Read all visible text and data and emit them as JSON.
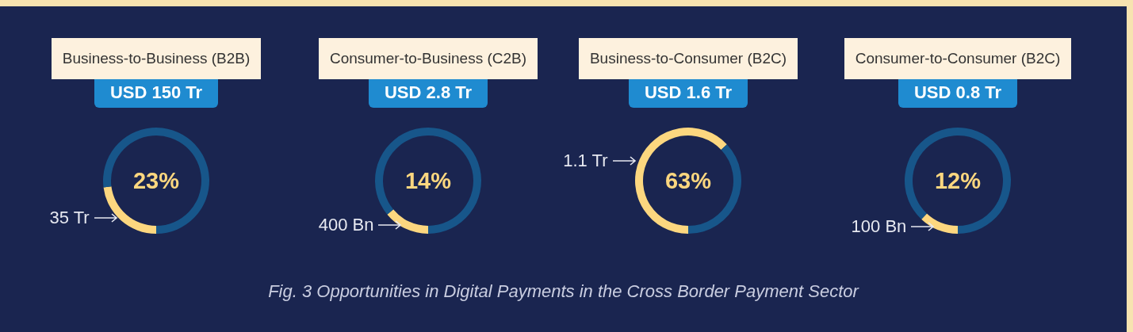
{
  "chart_data": [
    {
      "type": "donut",
      "title": "Business-to-Business (B2B)",
      "subtitle": "USD 150 Tr",
      "categories": [
        null,
        null
      ],
      "values": [
        23,
        77
      ],
      "colors": [
        "#fcd77f",
        "#17568a"
      ],
      "annotations": [
        "23%",
        "35 Tr",
        "Fig. 3 Opportunities in Digital Payments in the Cross Border Payment Sector"
      ]
    },
    {
      "type": "donut",
      "title": "Consumer-to-Business (C2B)",
      "subtitle": "USD 2.8 Tr",
      "categories": [
        null,
        null
      ],
      "values": [
        14,
        86
      ],
      "colors": [
        "#fcd77f",
        "#17568a"
      ],
      "annotations": [
        "14%",
        "400 Bn"
      ]
    },
    {
      "type": "donut",
      "title": "Business-to-Consumer (B2C)",
      "subtitle": "USD 1.6 Tr",
      "categories": [
        null,
        null
      ],
      "values": [
        63,
        37
      ],
      "colors": [
        "#fcd77f",
        "#17568a"
      ],
      "annotations": [
        "63%",
        "1.1 Tr"
      ]
    },
    {
      "type": "donut",
      "title": "Consumer-to-Consumer (B2C)",
      "subtitle": "USD 0.8 Tr",
      "categories": [
        null,
        null
      ],
      "values": [
        12,
        88
      ],
      "colors": [
        "#fcd77f",
        "#17568a"
      ],
      "annotations": [
        "12%",
        "100 Bn"
      ]
    }
  ]
}
